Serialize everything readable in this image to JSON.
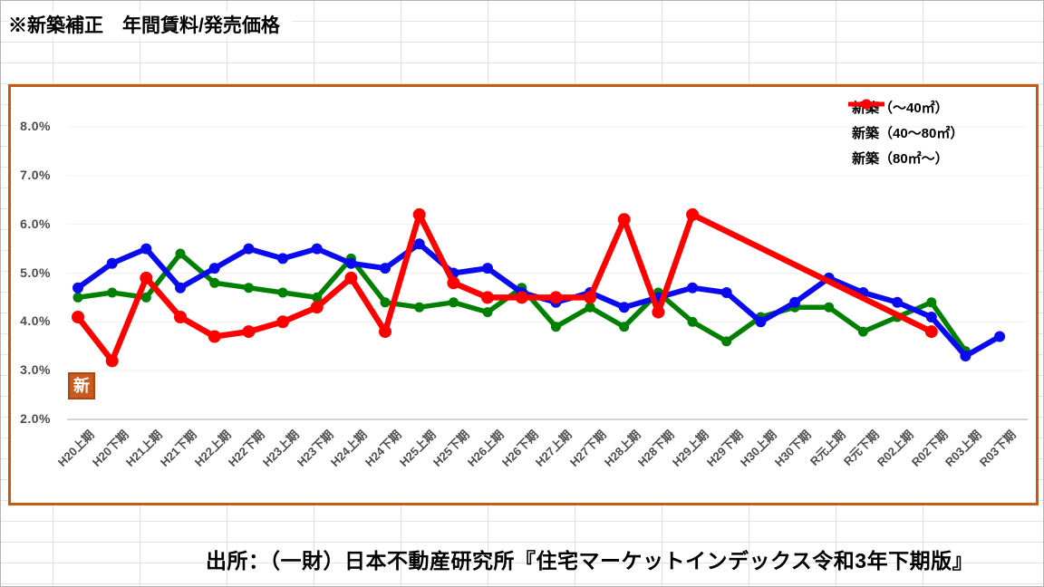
{
  "sheet": {
    "title_cell": "※新築補正　年間賃料/発売価格",
    "source_note": "出所：（一財）日本不動産研究所『住宅マーケットインデックス令和3年下期版』",
    "stamp": "新"
  },
  "colors": {
    "chart_border": "#C55A11",
    "sheet_grid": "#E2E2E2",
    "plot_grid": "#F1F1F1",
    "axis_line": "#C6C6C6",
    "tick_label": "#4D4D4D",
    "stamp_bg": "#C95B1E"
  },
  "chart_data": {
    "type": "line",
    "title": "※新築補正　年間賃料/発売価格",
    "xlabel": "",
    "ylabel": "",
    "ylim": [
      2.0,
      8.0
    ],
    "y_ticks": [
      "8.0%",
      "7.0%",
      "6.0%",
      "5.0%",
      "4.0%",
      "3.0%",
      "2.0%"
    ],
    "grid": true,
    "legend_position": "top-right",
    "categories": [
      "H20上期",
      "H20下期",
      "H21上期",
      "H21下期",
      "H22上期",
      "H22下期",
      "H23上期",
      "H23下期",
      "H24上期",
      "H24下期",
      "H25上期",
      "H25下期",
      "H26上期",
      "H26下期",
      "H27上期",
      "H27下期",
      "H28上期",
      "H28下期",
      "H29上期",
      "H29下期",
      "H30上期",
      "H30下期",
      "R元上期",
      "R元下期",
      "R02上期",
      "R02下期",
      "R03上期",
      "R03下期"
    ],
    "series": [
      {
        "name": "新築（～40㎡）",
        "color": "#008000",
        "values": [
          4.5,
          4.6,
          4.5,
          5.4,
          4.8,
          4.7,
          4.6,
          4.5,
          5.3,
          4.4,
          4.3,
          4.4,
          4.2,
          4.7,
          3.9,
          4.3,
          3.9,
          4.6,
          4.0,
          3.6,
          4.1,
          4.3,
          4.3,
          3.8,
          4.1,
          4.4,
          3.4,
          null
        ]
      },
      {
        "name": "新築（40～80㎡）",
        "color": "#0A0AF0",
        "values": [
          4.7,
          5.2,
          5.5,
          4.7,
          5.1,
          5.5,
          5.3,
          5.5,
          5.2,
          5.1,
          5.6,
          5.0,
          5.1,
          4.6,
          4.4,
          4.6,
          4.3,
          4.5,
          4.7,
          4.6,
          4.0,
          4.4,
          4.9,
          4.6,
          4.4,
          4.1,
          3.3,
          3.7
        ]
      },
      {
        "name": "新築（80㎡～）",
        "color": "#FF0000",
        "values": [
          4.1,
          3.2,
          4.9,
          4.1,
          3.7,
          3.8,
          4.0,
          4.3,
          4.9,
          3.8,
          6.2,
          4.8,
          4.5,
          4.5,
          4.5,
          4.5,
          6.1,
          4.2,
          6.2,
          null,
          null,
          null,
          null,
          null,
          null,
          3.8,
          null,
          null
        ]
      }
    ]
  }
}
